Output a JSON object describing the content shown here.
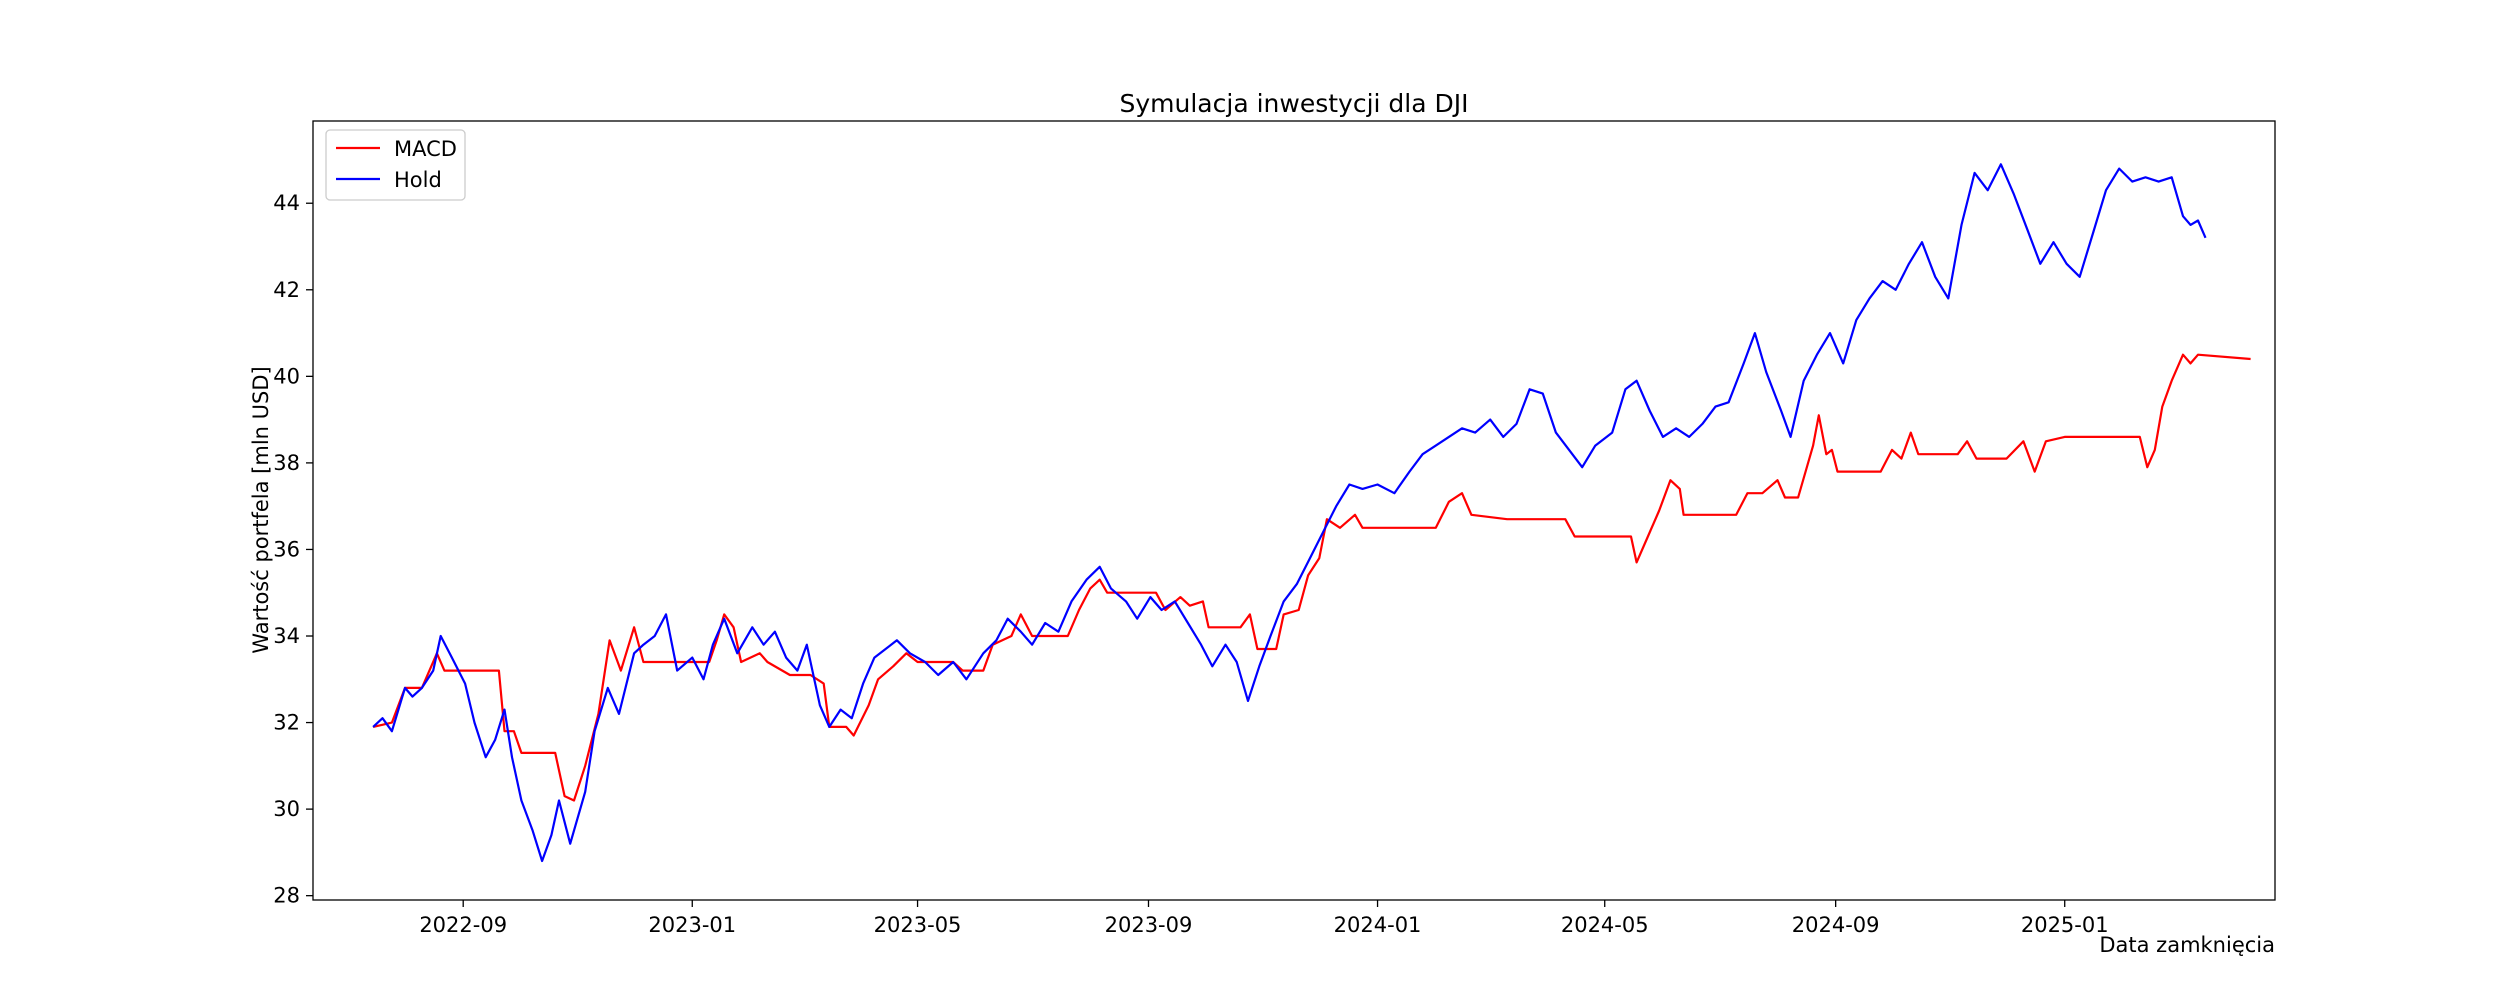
{
  "chart_data": {
    "type": "line",
    "title": "Symulacja inwestycji dla DJI",
    "xlabel": "Data zamknięcia",
    "ylabel": "Wartość portfela [mln USD]",
    "x_ticks": [
      "2022-09",
      "2023-01",
      "2023-05",
      "2023-09",
      "2024-01",
      "2024-05",
      "2024-09",
      "2025-01"
    ],
    "x_tick_dates": [
      "2022-09-01",
      "2023-01-01",
      "2023-05-01",
      "2023-09-01",
      "2024-01-01",
      "2024-05-01",
      "2024-09-01",
      "2025-01-01"
    ],
    "xlim": [
      "2022-06-13",
      "2025-04-23"
    ],
    "y_ticks": [
      28,
      30,
      32,
      34,
      36,
      38,
      40,
      42,
      44
    ],
    "ylim": [
      27.9,
      45.9
    ],
    "grid": false,
    "legend_position": "upper-left",
    "series": [
      {
        "name": "MACD",
        "color": "#ff0000",
        "points": [
          [
            "2022-07-15",
            31.9
          ],
          [
            "2022-07-25",
            32.0
          ],
          [
            "2022-08-01",
            32.8
          ],
          [
            "2022-08-10",
            32.8
          ],
          [
            "2022-08-18",
            33.6
          ],
          [
            "2022-08-22",
            33.2
          ],
          [
            "2022-09-20",
            33.2
          ],
          [
            "2022-09-23",
            31.8
          ],
          [
            "2022-09-28",
            31.8
          ],
          [
            "2022-10-02",
            31.3
          ],
          [
            "2022-10-20",
            31.3
          ],
          [
            "2022-10-25",
            30.3
          ],
          [
            "2022-10-30",
            30.2
          ],
          [
            "2022-11-05",
            31.0
          ],
          [
            "2022-11-12",
            32.2
          ],
          [
            "2022-11-18",
            33.9
          ],
          [
            "2022-11-24",
            33.2
          ],
          [
            "2022-12-01",
            34.2
          ],
          [
            "2022-12-06",
            33.4
          ],
          [
            "2023-01-10",
            33.4
          ],
          [
            "2023-01-14",
            33.9
          ],
          [
            "2023-01-18",
            34.5
          ],
          [
            "2023-01-23",
            34.2
          ],
          [
            "2023-01-27",
            33.4
          ],
          [
            "2023-02-06",
            33.6
          ],
          [
            "2023-02-10",
            33.4
          ],
          [
            "2023-02-22",
            33.1
          ],
          [
            "2023-03-05",
            33.1
          ],
          [
            "2023-03-12",
            32.9
          ],
          [
            "2023-03-15",
            31.9
          ],
          [
            "2023-03-24",
            31.9
          ],
          [
            "2023-03-28",
            31.7
          ],
          [
            "2023-04-05",
            32.4
          ],
          [
            "2023-04-10",
            33.0
          ],
          [
            "2023-04-18",
            33.3
          ],
          [
            "2023-04-25",
            33.6
          ],
          [
            "2023-05-01",
            33.4
          ],
          [
            "2023-05-20",
            33.4
          ],
          [
            "2023-05-25",
            33.2
          ],
          [
            "2023-06-05",
            33.2
          ],
          [
            "2023-06-10",
            33.8
          ],
          [
            "2023-06-20",
            34.0
          ],
          [
            "2023-06-25",
            34.5
          ],
          [
            "2023-07-01",
            34.0
          ],
          [
            "2023-07-20",
            34.0
          ],
          [
            "2023-07-26",
            34.6
          ],
          [
            "2023-08-01",
            35.1
          ],
          [
            "2023-08-06",
            35.3
          ],
          [
            "2023-08-10",
            35.0
          ],
          [
            "2023-09-05",
            35.0
          ],
          [
            "2023-09-10",
            34.6
          ],
          [
            "2023-09-18",
            34.9
          ],
          [
            "2023-09-23",
            34.7
          ],
          [
            "2023-09-30",
            34.8
          ],
          [
            "2023-10-03",
            34.2
          ],
          [
            "2023-10-20",
            34.2
          ],
          [
            "2023-10-25",
            34.5
          ],
          [
            "2023-10-29",
            33.7
          ],
          [
            "2023-11-08",
            33.7
          ],
          [
            "2023-11-12",
            34.5
          ],
          [
            "2023-11-20",
            34.6
          ],
          [
            "2023-11-25",
            35.4
          ],
          [
            "2023-12-01",
            35.8
          ],
          [
            "2023-12-05",
            36.7
          ],
          [
            "2023-12-12",
            36.5
          ],
          [
            "2023-12-20",
            36.8
          ],
          [
            "2023-12-24",
            36.5
          ],
          [
            "2024-02-01",
            36.5
          ],
          [
            "2024-02-08",
            37.1
          ],
          [
            "2024-02-15",
            37.3
          ],
          [
            "2024-02-20",
            36.8
          ],
          [
            "2024-03-10",
            36.7
          ],
          [
            "2024-04-10",
            36.7
          ],
          [
            "2024-04-15",
            36.3
          ],
          [
            "2024-05-15",
            36.3
          ],
          [
            "2024-05-18",
            35.7
          ],
          [
            "2024-05-24",
            36.3
          ],
          [
            "2024-05-30",
            36.9
          ],
          [
            "2024-06-05",
            37.6
          ],
          [
            "2024-06-10",
            37.4
          ],
          [
            "2024-06-12",
            36.8
          ],
          [
            "2024-07-10",
            36.8
          ],
          [
            "2024-07-16",
            37.3
          ],
          [
            "2024-07-24",
            37.3
          ],
          [
            "2024-08-01",
            37.6
          ],
          [
            "2024-08-05",
            37.2
          ],
          [
            "2024-08-12",
            37.2
          ],
          [
            "2024-08-20",
            38.4
          ],
          [
            "2024-08-23",
            39.1
          ],
          [
            "2024-08-27",
            38.2
          ],
          [
            "2024-08-30",
            38.3
          ],
          [
            "2024-09-02",
            37.8
          ],
          [
            "2024-09-25",
            37.8
          ],
          [
            "2024-10-01",
            38.3
          ],
          [
            "2024-10-06",
            38.1
          ],
          [
            "2024-10-11",
            38.7
          ],
          [
            "2024-10-15",
            38.2
          ],
          [
            "2024-11-05",
            38.2
          ],
          [
            "2024-11-10",
            38.5
          ],
          [
            "2024-11-15",
            38.1
          ],
          [
            "2024-12-01",
            38.1
          ],
          [
            "2024-12-10",
            38.5
          ],
          [
            "2024-12-16",
            37.8
          ],
          [
            "2024-12-22",
            38.5
          ],
          [
            "2025-01-01",
            38.6
          ],
          [
            "2025-02-10",
            38.6
          ],
          [
            "2025-02-14",
            37.9
          ],
          [
            "2025-02-18",
            38.3
          ],
          [
            "2025-02-22",
            39.3
          ],
          [
            "2025-02-27",
            39.9
          ],
          [
            "2025-03-05",
            40.5
          ],
          [
            "2025-03-09",
            40.3
          ],
          [
            "2025-03-13",
            40.5
          ],
          [
            "2025-04-10",
            40.4
          ]
        ]
      },
      {
        "name": "Hold",
        "color": "#0000ff",
        "points": [
          [
            "2022-07-15",
            31.9
          ],
          [
            "2022-07-20",
            32.1
          ],
          [
            "2022-07-25",
            31.8
          ],
          [
            "2022-08-01",
            32.8
          ],
          [
            "2022-08-05",
            32.6
          ],
          [
            "2022-08-10",
            32.8
          ],
          [
            "2022-08-16",
            33.2
          ],
          [
            "2022-08-20",
            34.0
          ],
          [
            "2022-08-26",
            33.5
          ],
          [
            "2022-09-02",
            32.9
          ],
          [
            "2022-09-07",
            32.0
          ],
          [
            "2022-09-13",
            31.2
          ],
          [
            "2022-09-18",
            31.6
          ],
          [
            "2022-09-23",
            32.3
          ],
          [
            "2022-09-27",
            31.2
          ],
          [
            "2022-10-02",
            30.2
          ],
          [
            "2022-10-08",
            29.5
          ],
          [
            "2022-10-13",
            28.8
          ],
          [
            "2022-10-18",
            29.4
          ],
          [
            "2022-10-22",
            30.2
          ],
          [
            "2022-10-28",
            29.2
          ],
          [
            "2022-11-05",
            30.4
          ],
          [
            "2022-11-10",
            31.8
          ],
          [
            "2022-11-17",
            32.8
          ],
          [
            "2022-11-23",
            32.2
          ],
          [
            "2022-12-01",
            33.6
          ],
          [
            "2022-12-06",
            33.8
          ],
          [
            "2022-12-12",
            34.0
          ],
          [
            "2022-12-18",
            34.5
          ],
          [
            "2022-12-24",
            33.2
          ],
          [
            "2023-01-01",
            33.5
          ],
          [
            "2023-01-07",
            33.0
          ],
          [
            "2023-01-12",
            33.8
          ],
          [
            "2023-01-18",
            34.4
          ],
          [
            "2023-01-25",
            33.6
          ],
          [
            "2023-02-02",
            34.2
          ],
          [
            "2023-02-08",
            33.8
          ],
          [
            "2023-02-14",
            34.1
          ],
          [
            "2023-02-20",
            33.5
          ],
          [
            "2023-02-26",
            33.2
          ],
          [
            "2023-03-03",
            33.8
          ],
          [
            "2023-03-10",
            32.4
          ],
          [
            "2023-03-15",
            31.9
          ],
          [
            "2023-03-21",
            32.3
          ],
          [
            "2023-03-27",
            32.1
          ],
          [
            "2023-04-02",
            32.9
          ],
          [
            "2023-04-08",
            33.5
          ],
          [
            "2023-04-14",
            33.7
          ],
          [
            "2023-04-20",
            33.9
          ],
          [
            "2023-04-27",
            33.6
          ],
          [
            "2023-05-05",
            33.4
          ],
          [
            "2023-05-12",
            33.1
          ],
          [
            "2023-05-20",
            33.4
          ],
          [
            "2023-05-27",
            33.0
          ],
          [
            "2023-06-05",
            33.6
          ],
          [
            "2023-06-12",
            33.9
          ],
          [
            "2023-06-18",
            34.4
          ],
          [
            "2023-06-25",
            34.1
          ],
          [
            "2023-07-01",
            33.8
          ],
          [
            "2023-07-08",
            34.3
          ],
          [
            "2023-07-15",
            34.1
          ],
          [
            "2023-07-22",
            34.8
          ],
          [
            "2023-07-30",
            35.3
          ],
          [
            "2023-08-06",
            35.6
          ],
          [
            "2023-08-12",
            35.1
          ],
          [
            "2023-08-20",
            34.8
          ],
          [
            "2023-08-26",
            34.4
          ],
          [
            "2023-09-02",
            34.9
          ],
          [
            "2023-09-08",
            34.6
          ],
          [
            "2023-09-15",
            34.8
          ],
          [
            "2023-09-22",
            34.3
          ],
          [
            "2023-09-29",
            33.8
          ],
          [
            "2023-10-05",
            33.3
          ],
          [
            "2023-10-12",
            33.8
          ],
          [
            "2023-10-18",
            33.4
          ],
          [
            "2023-10-24",
            32.5
          ],
          [
            "2023-10-30",
            33.3
          ],
          [
            "2023-11-05",
            34.0
          ],
          [
            "2023-11-12",
            34.8
          ],
          [
            "2023-11-19",
            35.2
          ],
          [
            "2023-11-26",
            35.8
          ],
          [
            "2023-12-03",
            36.4
          ],
          [
            "2023-12-10",
            37.0
          ],
          [
            "2023-12-17",
            37.5
          ],
          [
            "2023-12-24",
            37.4
          ],
          [
            "2024-01-01",
            37.5
          ],
          [
            "2024-01-10",
            37.3
          ],
          [
            "2024-01-18",
            37.8
          ],
          [
            "2024-01-25",
            38.2
          ],
          [
            "2024-02-01",
            38.4
          ],
          [
            "2024-02-08",
            38.6
          ],
          [
            "2024-02-15",
            38.8
          ],
          [
            "2024-02-22",
            38.7
          ],
          [
            "2024-03-01",
            39.0
          ],
          [
            "2024-03-08",
            38.6
          ],
          [
            "2024-03-15",
            38.9
          ],
          [
            "2024-03-22",
            39.7
          ],
          [
            "2024-03-29",
            39.6
          ],
          [
            "2024-04-05",
            38.7
          ],
          [
            "2024-04-12",
            38.3
          ],
          [
            "2024-04-19",
            37.9
          ],
          [
            "2024-04-26",
            38.4
          ],
          [
            "2024-05-05",
            38.7
          ],
          [
            "2024-05-12",
            39.7
          ],
          [
            "2024-05-18",
            39.9
          ],
          [
            "2024-05-25",
            39.2
          ],
          [
            "2024-06-01",
            38.6
          ],
          [
            "2024-06-08",
            38.8
          ],
          [
            "2024-06-15",
            38.6
          ],
          [
            "2024-06-22",
            38.9
          ],
          [
            "2024-06-29",
            39.3
          ],
          [
            "2024-07-06",
            39.4
          ],
          [
            "2024-07-14",
            40.3
          ],
          [
            "2024-07-20",
            41.0
          ],
          [
            "2024-07-26",
            40.1
          ],
          [
            "2024-08-03",
            39.2
          ],
          [
            "2024-08-08",
            38.6
          ],
          [
            "2024-08-15",
            39.9
          ],
          [
            "2024-08-22",
            40.5
          ],
          [
            "2024-08-29",
            41.0
          ],
          [
            "2024-09-05",
            40.3
          ],
          [
            "2024-09-12",
            41.3
          ],
          [
            "2024-09-19",
            41.8
          ],
          [
            "2024-09-26",
            42.2
          ],
          [
            "2024-10-03",
            42.0
          ],
          [
            "2024-10-10",
            42.6
          ],
          [
            "2024-10-17",
            43.1
          ],
          [
            "2024-10-24",
            42.3
          ],
          [
            "2024-10-31",
            41.8
          ],
          [
            "2024-11-07",
            43.5
          ],
          [
            "2024-11-14",
            44.7
          ],
          [
            "2024-11-21",
            44.3
          ],
          [
            "2024-11-28",
            44.9
          ],
          [
            "2024-12-05",
            44.2
          ],
          [
            "2024-12-12",
            43.4
          ],
          [
            "2024-12-19",
            42.6
          ],
          [
            "2024-12-26",
            43.1
          ],
          [
            "2025-01-02",
            42.6
          ],
          [
            "2025-01-09",
            42.3
          ],
          [
            "2025-01-16",
            43.3
          ],
          [
            "2025-01-23",
            44.3
          ],
          [
            "2025-01-30",
            44.8
          ],
          [
            "2025-02-06",
            44.5
          ],
          [
            "2025-02-13",
            44.6
          ],
          [
            "2025-02-20",
            44.5
          ],
          [
            "2025-02-27",
            44.6
          ],
          [
            "2025-03-05",
            43.7
          ],
          [
            "2025-03-09",
            43.5
          ],
          [
            "2025-03-13",
            43.6
          ],
          [
            "2025-03-17",
            43.2
          ]
        ]
      }
    ]
  }
}
